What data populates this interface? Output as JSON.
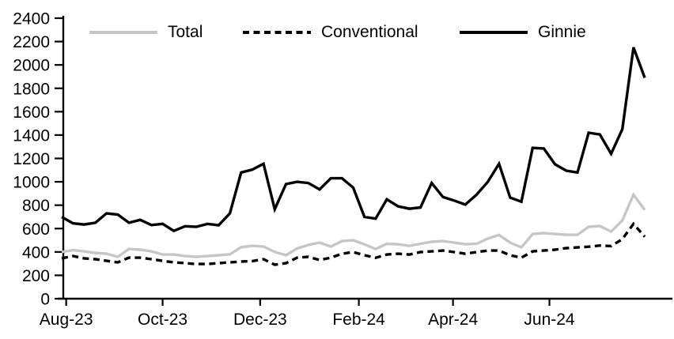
{
  "figure": {
    "background": "#ffffff",
    "text_color": "#000000",
    "axis_color": "#000000"
  },
  "chart_data": {
    "type": "line",
    "title": "",
    "xlabel": "",
    "ylabel": "",
    "x_frequency": "weekly",
    "x_tick_labels": [
      "Aug-23",
      "Oct-23",
      "Dec-23",
      "Feb-24",
      "Apr-24",
      "Jun-24"
    ],
    "x_tick_indices": [
      0.4,
      9.0,
      17.7,
      26.5,
      34.9,
      43.5
    ],
    "ylim": [
      0,
      2400
    ],
    "y_tick_step": 200,
    "grid": false,
    "legend_position": "top",
    "series": [
      {
        "name": "Total",
        "color": "#c6c6c6",
        "style": "solid",
        "values": [
          400,
          415,
          405,
          392,
          385,
          358,
          425,
          419,
          405,
          378,
          378,
          365,
          358,
          365,
          372,
          380,
          440,
          452,
          446,
          400,
          372,
          430,
          460,
          480,
          446,
          493,
          500,
          465,
          425,
          470,
          466,
          453,
          470,
          487,
          493,
          480,
          466,
          470,
          514,
          545,
          480,
          439,
          554,
          561,
          554,
          547,
          547,
          615,
          622,
          574,
          670,
          890,
          760
        ]
      },
      {
        "name": "Conventional",
        "color": "#000000",
        "style": "dashed",
        "values": [
          345,
          365,
          345,
          338,
          324,
          311,
          351,
          351,
          338,
          324,
          311,
          304,
          297,
          297,
          304,
          311,
          318,
          322,
          338,
          291,
          304,
          351,
          358,
          331,
          351,
          385,
          399,
          372,
          350,
          378,
          385,
          378,
          399,
          405,
          412,
          399,
          385,
          399,
          412,
          412,
          372,
          351,
          405,
          412,
          419,
          433,
          439,
          445,
          455,
          450,
          510,
          640,
          530
        ]
      },
      {
        "name": "Ginnie",
        "color": "#000000",
        "style": "solid",
        "values": [
          700,
          645,
          635,
          650,
          730,
          720,
          650,
          675,
          630,
          640,
          580,
          620,
          615,
          640,
          628,
          730,
          1080,
          1105,
          1155,
          765,
          980,
          1000,
          990,
          935,
          1030,
          1030,
          950,
          700,
          685,
          850,
          790,
          770,
          780,
          990,
          870,
          840,
          805,
          890,
          1000,
          1155,
          865,
          830,
          1290,
          1285,
          1150,
          1095,
          1080,
          1420,
          1405,
          1240,
          1450,
          2150,
          1890
        ]
      }
    ]
  }
}
